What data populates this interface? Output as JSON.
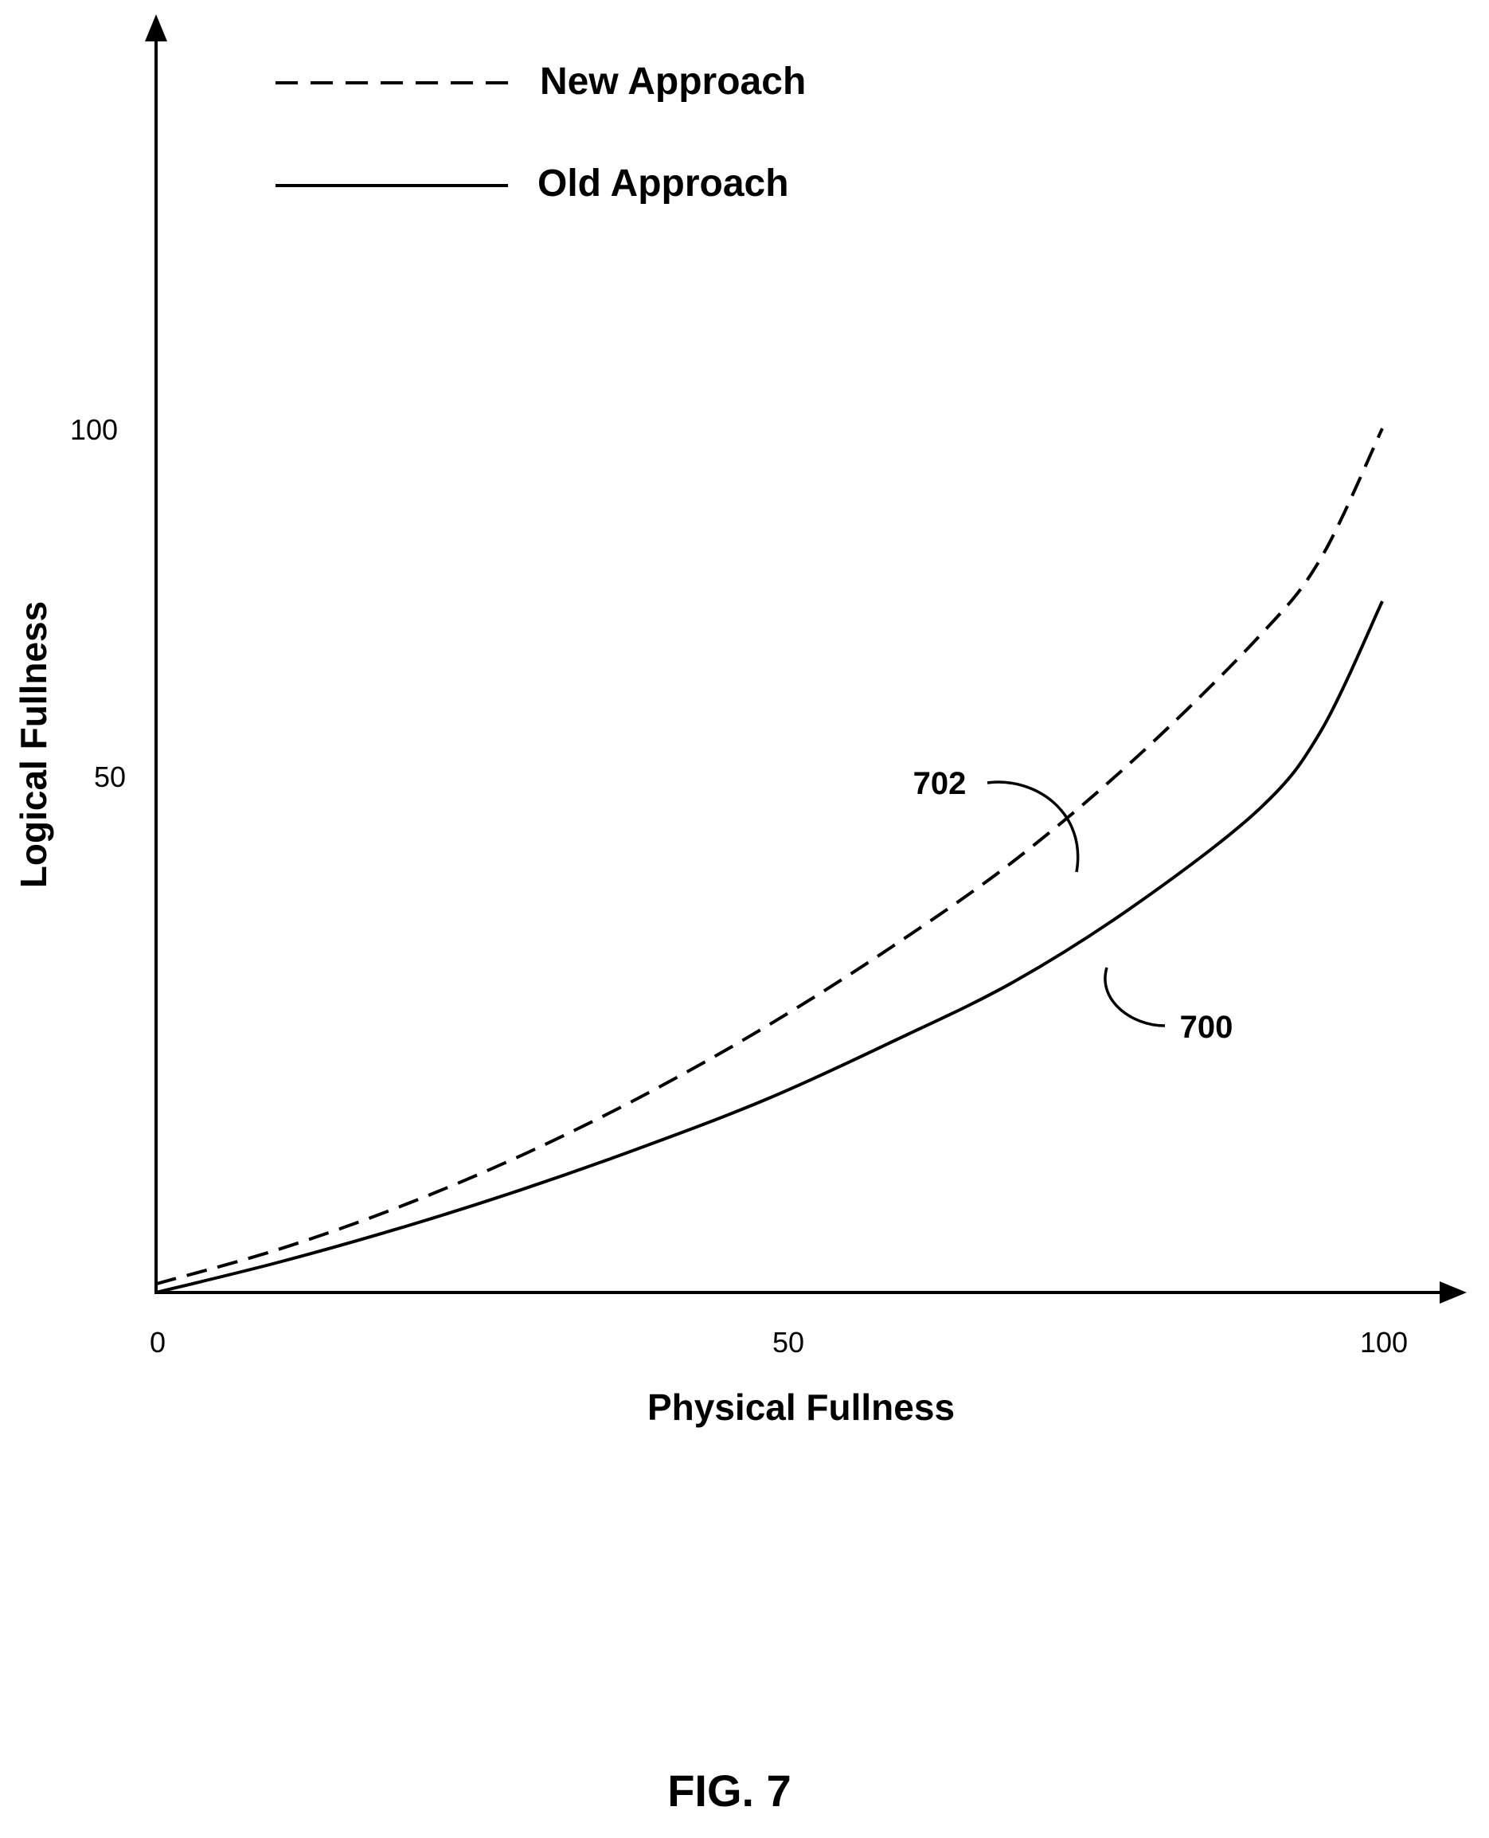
{
  "chart_data": {
    "type": "line",
    "figure_label": "FIG. 7",
    "xlabel": "Physical Fullness",
    "ylabel": "Logical Fullness",
    "xlim": [
      0,
      100
    ],
    "ylim": [
      0,
      100
    ],
    "x_ticks": [
      "0",
      "50",
      "100"
    ],
    "y_ticks": [
      "50",
      "100"
    ],
    "grid": false,
    "legend_position": "top-left",
    "series": [
      {
        "name": "New Approach",
        "ref": "702",
        "style": "dashed",
        "color": "#000000",
        "x": [
          0,
          10,
          20,
          30,
          40,
          50,
          60,
          70,
          80,
          90,
          95,
          100
        ],
        "y": [
          1,
          5,
          10,
          16,
          23,
          31,
          40,
          50,
          62,
          76,
          85,
          100
        ]
      },
      {
        "name": "Old Approach",
        "ref": "700",
        "style": "solid",
        "color": "#000000",
        "x": [
          0,
          10,
          20,
          30,
          40,
          50,
          60,
          70,
          80,
          90,
          95,
          100
        ],
        "y": [
          0,
          3.5,
          7.5,
          12,
          17,
          22.5,
          29,
          36,
          45,
          56,
          65,
          80
        ]
      }
    ]
  }
}
